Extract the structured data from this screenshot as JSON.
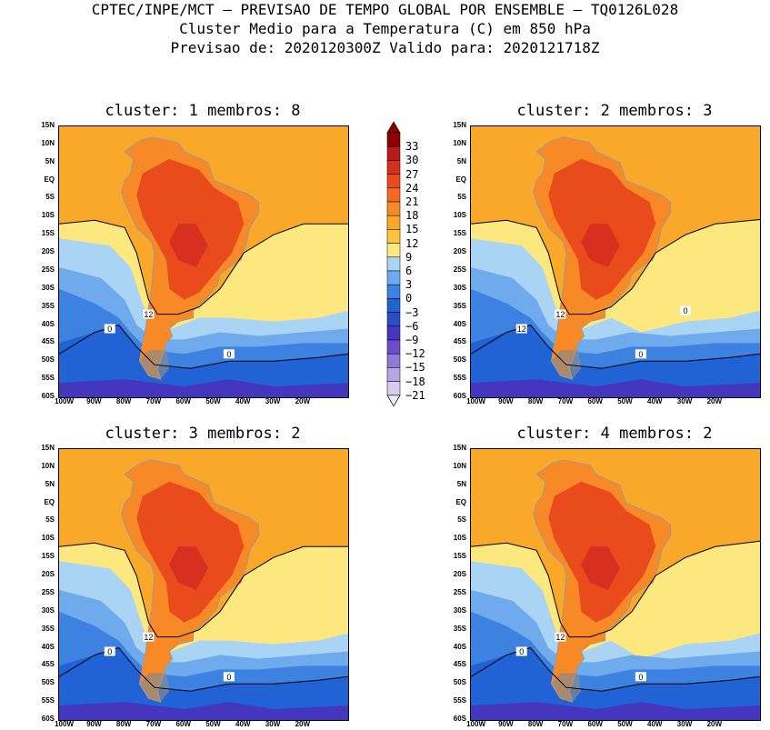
{
  "header": {
    "line1": "CPTEC/INPE/MCT – PREVISAO DE TEMPO GLOBAL POR ENSEMBLE – TQ0126L028",
    "line2": "Cluster Medio para a Temperatura (C) em 850 hPa",
    "line3": "Previsao de: 2020120300Z    Valido para: 2020121718Z"
  },
  "panels": [
    {
      "title": "cluster: 1   membros: 8",
      "contour_labels": [
        "12",
        "0",
        "0"
      ]
    },
    {
      "title": "cluster: 2   membros: 3",
      "contour_labels": [
        "12",
        "12",
        "0",
        "0"
      ]
    },
    {
      "title": "cluster: 3   membros: 2",
      "contour_labels": [
        "12",
        "0",
        "0"
      ]
    },
    {
      "title": "cluster: 4   membros: 2",
      "contour_labels": [
        "12",
        "0",
        "0"
      ]
    }
  ],
  "y_axis_labels": [
    "15N",
    "10N",
    "5N",
    "EQ",
    "5S",
    "10S",
    "15S",
    "20S",
    "25S",
    "30S",
    "35S",
    "40S",
    "45S",
    "50S",
    "55S",
    "60S"
  ],
  "x_axis_labels": [
    "100W",
    "90W",
    "80W",
    "70W",
    "60W",
    "50W",
    "40W",
    "30W",
    "20W"
  ],
  "colorbar": {
    "labels": [
      "33",
      "30",
      "27",
      "24",
      "21",
      "18",
      "15",
      "12",
      "9",
      "6",
      "3",
      "0",
      "-3",
      "-6",
      "-9",
      "-12",
      "-15",
      "-18",
      "-21"
    ],
    "colors": [
      "#8b0000",
      "#b81a1a",
      "#d83020",
      "#ea4b1c",
      "#f26a22",
      "#f78a26",
      "#f9a82a",
      "#fbc63e",
      "#fde880",
      "#a9d4f4",
      "#6eaaec",
      "#3d82e0",
      "#2162d4",
      "#2a4cc8",
      "#4536bf",
      "#6a4ec9",
      "#9178d6",
      "#b7a6e4",
      "#d8cdf1"
    ]
  },
  "colors": {
    "warm_orange": "#f9a82a",
    "orange": "#f78a26",
    "red_orange": "#ea4b1c",
    "yellow": "#fde880",
    "blue": "#3d82e0",
    "dark_blue": "#2162d4",
    "purple": "#4536bf"
  }
}
